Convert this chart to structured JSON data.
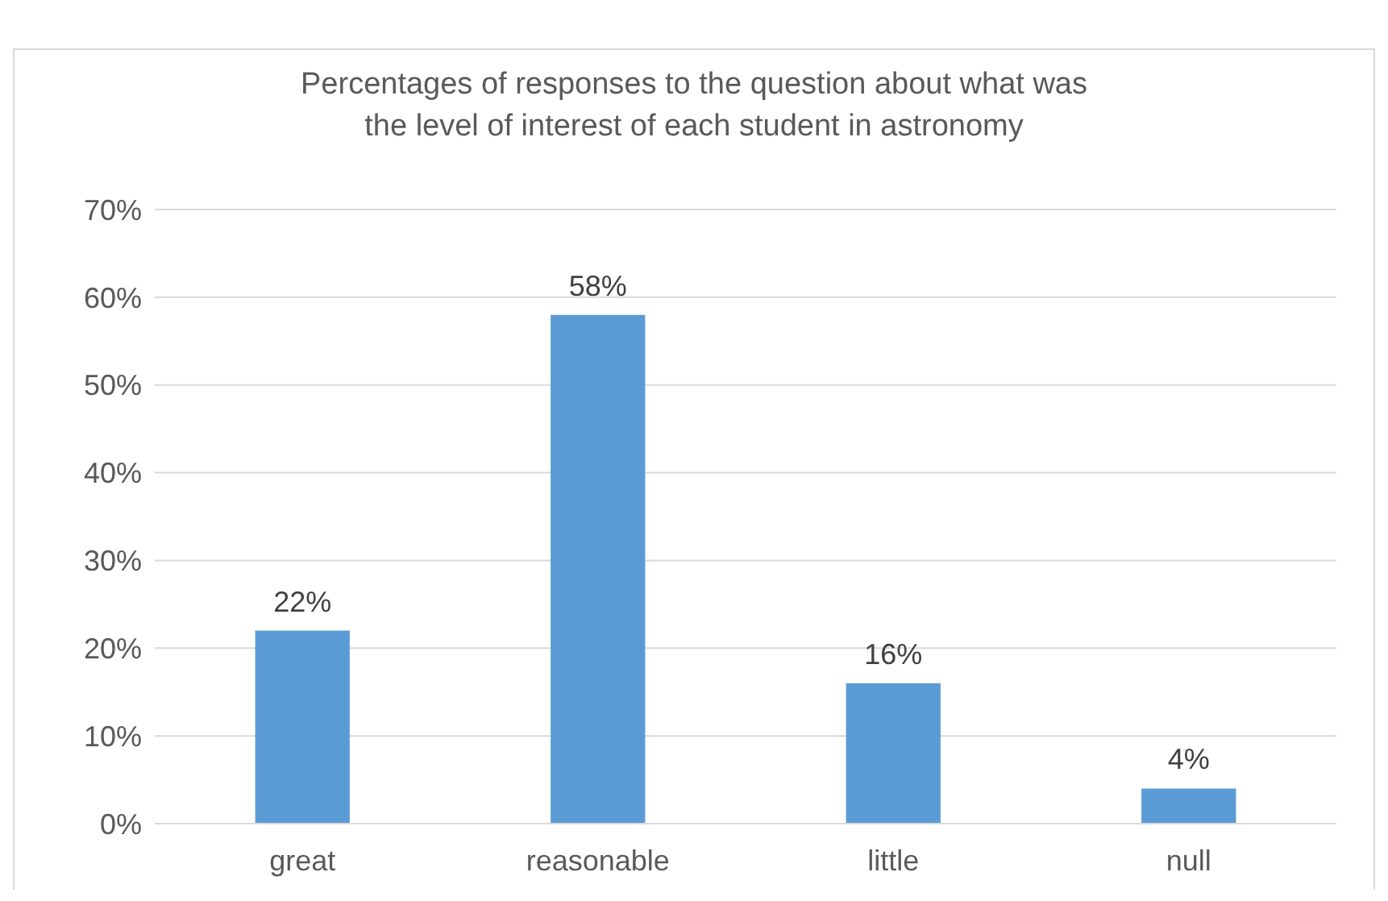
{
  "chart_data": {
    "type": "bar",
    "title": "Percentages of responses to the question about what was\nthe level of interest of each student in astronomy",
    "categories": [
      "great",
      "reasonable",
      "little",
      "null"
    ],
    "values": [
      22,
      58,
      16,
      4
    ],
    "color": "#5b9bd5",
    "value_labels": [
      "22%",
      "58%",
      "16%",
      "4%"
    ],
    "ylim": [
      0,
      70
    ],
    "yticks": [
      {
        "value": 0,
        "label": "0%"
      },
      {
        "value": 10,
        "label": "10%"
      },
      {
        "value": 20,
        "label": "20%"
      },
      {
        "value": 30,
        "label": "30%"
      },
      {
        "value": 40,
        "label": "40%"
      },
      {
        "value": 50,
        "label": "50%"
      },
      {
        "value": 60,
        "label": "60%"
      },
      {
        "value": 70,
        "label": "70%"
      }
    ],
    "grid": "y"
  }
}
